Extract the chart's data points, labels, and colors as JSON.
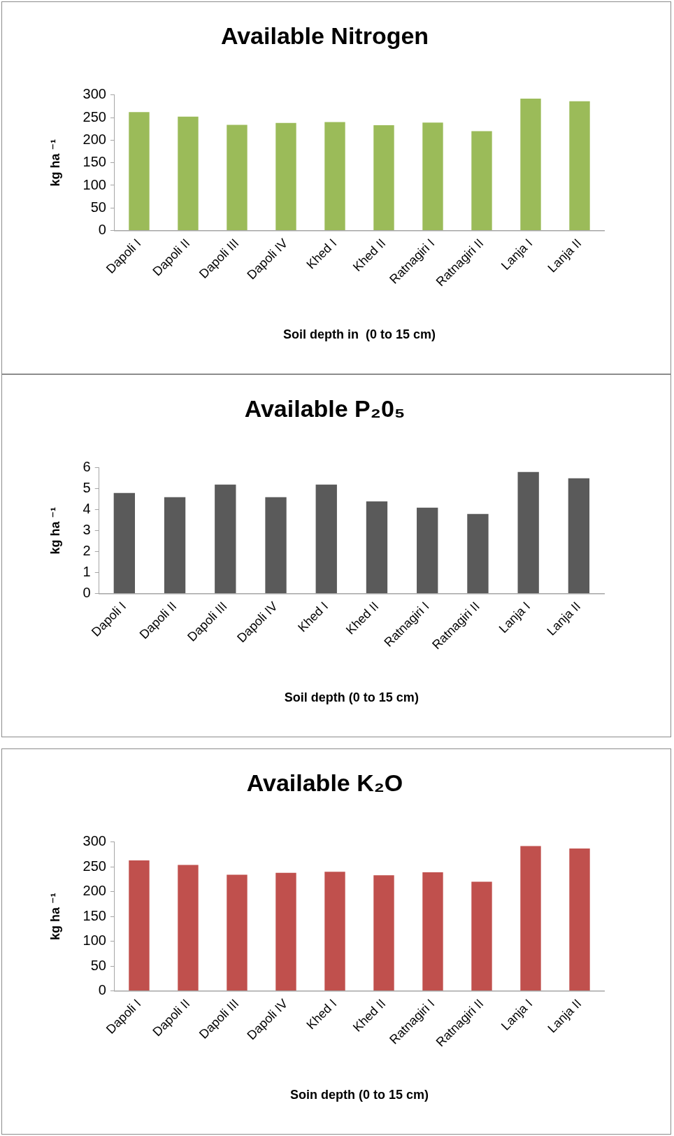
{
  "chart_data": [
    {
      "type": "bar",
      "title": "Available Nitrogen",
      "xlabel": "Soil depth in  (0 to 15 cm)",
      "ylabel": "kg ha ⁻¹",
      "categories": [
        "Dapoli I",
        "Dapoli II",
        "Dapoli III",
        "Dapoli IV",
        "Khed I",
        "Khed II",
        "Ratnagiri I",
        "Ratnagiri II",
        "Lanja I",
        "Lanja II"
      ],
      "values": [
        262,
        252,
        234,
        238,
        240,
        233,
        239,
        220,
        292,
        286
      ],
      "color": "#9bbb59",
      "ylim": [
        0,
        300
      ],
      "yticks": [
        0,
        50,
        100,
        150,
        200,
        250,
        300
      ]
    },
    {
      "type": "bar",
      "title": "Available P₂0₅",
      "xlabel": "Soil depth (0 to 15 cm)",
      "ylabel": "kg ha ⁻¹",
      "categories": [
        "Dapoli I",
        "Dapoli II",
        "Dapoli III",
        "Dapoli IV",
        "Khed I",
        "Khed II",
        "Ratnagiri I",
        "Ratnagiri II",
        "Lanja I",
        "Lanja II"
      ],
      "values": [
        4.8,
        4.6,
        5.2,
        4.6,
        5.2,
        4.4,
        4.1,
        3.8,
        5.8,
        5.5
      ],
      "color": "#5a5a5a",
      "ylim": [
        0,
        6
      ],
      "yticks": [
        0,
        1,
        2,
        3,
        4,
        5,
        6
      ]
    },
    {
      "type": "bar",
      "title": "Available K₂O",
      "xlabel": "Soin depth (0 to 15 cm)",
      "ylabel": "kg ha ⁻¹",
      "categories": [
        "Dapoli I",
        "Dapoli II",
        "Dapoli III",
        "Dapoli IV",
        "Khed I",
        "Khed II",
        "Ratnagiri I",
        "Ratnagiri II",
        "Lanja I",
        "Lanja II"
      ],
      "values": [
        263,
        254,
        234,
        238,
        240,
        233,
        239,
        220,
        292,
        287
      ],
      "color": "#c0504d",
      "ylim": [
        0,
        300
      ],
      "yticks": [
        0,
        50,
        100,
        150,
        200,
        250,
        300
      ]
    }
  ]
}
